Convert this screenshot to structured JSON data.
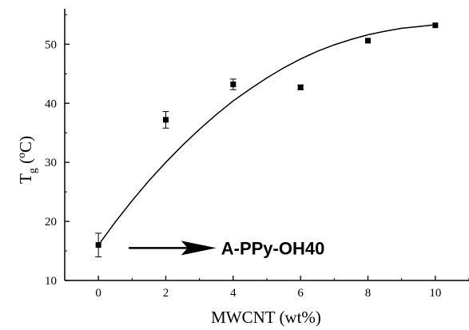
{
  "chart_data": {
    "type": "scatter",
    "title": "",
    "xlabel": "MWCNT (wt%)",
    "ylabel": {
      "main": "T",
      "sub": "g",
      "units_open": " (",
      "sup": "o",
      "units_close": "C)"
    },
    "xlim": [
      -1,
      11
    ],
    "ylim": [
      10,
      56
    ],
    "x_ticks": [
      0,
      2,
      4,
      6,
      8,
      10
    ],
    "y_ticks": [
      10,
      20,
      30,
      40,
      50
    ],
    "grid": false,
    "legend": null,
    "series": [
      {
        "marker": "square",
        "x": [
          0,
          2,
          4,
          6,
          8,
          10
        ],
        "y": [
          16.0,
          37.2,
          43.2,
          42.7,
          50.6,
          53.2
        ],
        "error": [
          2.0,
          1.4,
          0.9,
          0.4,
          0.0,
          0.0
        ]
      }
    ],
    "fit_curve": {
      "type": "line",
      "x": [
        0,
        0.5,
        1,
        1.5,
        2,
        2.5,
        3,
        3.5,
        4,
        4.5,
        5,
        5.5,
        6,
        6.5,
        7,
        7.5,
        8,
        8.5,
        9,
        9.5,
        10
      ],
      "y": [
        16.0,
        19.9,
        23.5,
        26.9,
        30.0,
        32.9,
        35.6,
        38.1,
        40.4,
        42.4,
        44.3,
        46.0,
        47.5,
        48.8,
        49.9,
        50.8,
        51.6,
        52.2,
        52.7,
        53.0,
        53.3
      ]
    },
    "annotation": {
      "text": "A-PPy-OH40",
      "arrow_from": [
        0.9,
        15.5
      ],
      "arrow_to": [
        3.5,
        15.5
      ]
    }
  }
}
